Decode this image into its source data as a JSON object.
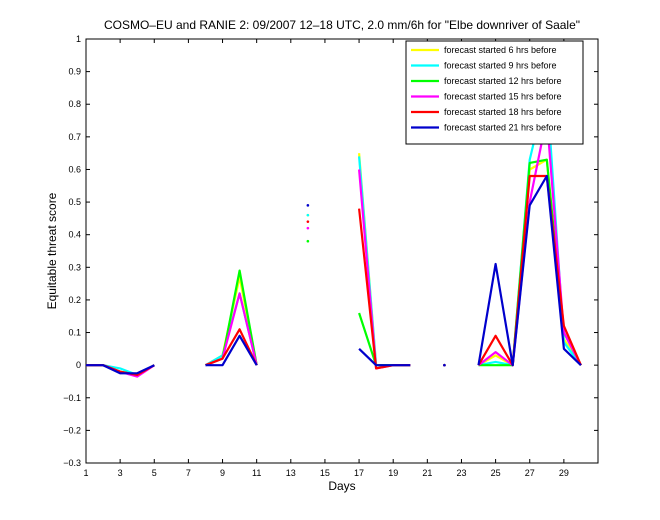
{
  "chart_data": {
    "type": "line",
    "title": "COSMO–EU and RANIE 2: 09/2007 12–18 UTC, 2.0 mm/6h for \"Elbe downriver of Saale\"",
    "xlabel": "Days",
    "ylabel": "Equitable threat score",
    "xlim": [
      1,
      31
    ],
    "ylim": [
      -0.3,
      1
    ],
    "xticks": [
      1,
      3,
      5,
      7,
      9,
      11,
      13,
      15,
      17,
      19,
      21,
      23,
      25,
      27,
      29
    ],
    "yticks": [
      -0.3,
      -0.2,
      -0.1,
      0,
      0.1,
      0.2,
      0.3,
      0.4,
      0.5,
      0.6,
      0.7,
      0.8,
      0.9,
      1
    ],
    "ytick_labels": [
      "−0.3",
      "−0.2",
      "−0.1",
      "0",
      "0.1",
      "0.2",
      "0.3",
      "0.4",
      "0.5",
      "0.6",
      "0.7",
      "0.8",
      "0.9",
      "1"
    ],
    "grid": false,
    "legend_position": "top-right",
    "x": [
      1,
      2,
      3,
      4,
      5,
      6,
      7,
      8,
      9,
      10,
      11,
      12,
      13,
      14,
      15,
      16,
      17,
      18,
      19,
      20,
      21,
      22,
      23,
      24,
      25,
      26,
      27,
      28,
      29,
      30,
      31
    ],
    "series": [
      {
        "name": "forecast started 6 hrs before",
        "color": "#ffff00",
        "values": [
          0,
          0,
          -0.02,
          -0.03,
          0,
          null,
          null,
          0,
          0.03,
          0.27,
          0,
          null,
          null,
          0.46,
          null,
          null,
          0.65,
          0,
          0,
          0,
          null,
          0,
          null,
          0,
          0.03,
          0,
          0.6,
          0.63,
          0.08,
          0,
          null
        ]
      },
      {
        "name": "forecast started 9 hrs before",
        "color": "#00ffff",
        "values": [
          0,
          0,
          -0.01,
          -0.03,
          0,
          null,
          null,
          0,
          0.03,
          0.22,
          0,
          null,
          null,
          0.46,
          null,
          null,
          0.64,
          0,
          0,
          0,
          null,
          0,
          null,
          0,
          0.01,
          0,
          0.63,
          0.85,
          0.07,
          0,
          null
        ]
      },
      {
        "name": "forecast started 12 hrs before",
        "color": "#00ff00",
        "values": [
          0,
          0,
          -0.02,
          -0.03,
          0,
          null,
          null,
          0,
          0.02,
          0.29,
          0,
          null,
          null,
          0.38,
          null,
          null,
          0.16,
          0,
          0,
          0,
          null,
          0,
          null,
          0,
          0,
          0,
          0.62,
          0.63,
          0.1,
          0,
          null
        ]
      },
      {
        "name": "forecast started 15 hrs before",
        "color": "#ff00ff",
        "values": [
          0,
          0,
          -0.02,
          -0.035,
          0,
          null,
          null,
          0,
          0.02,
          0.22,
          0,
          null,
          null,
          0.42,
          null,
          null,
          0.6,
          -0.01,
          0,
          0,
          null,
          0,
          null,
          0,
          0.04,
          0,
          0.5,
          0.76,
          0.1,
          0,
          null
        ]
      },
      {
        "name": "forecast started 18 hrs before",
        "color": "#ff0000",
        "values": [
          0,
          0,
          -0.02,
          -0.03,
          0,
          null,
          null,
          0,
          0.02,
          0.11,
          0,
          null,
          null,
          0.44,
          null,
          null,
          0.48,
          -0.01,
          0,
          0,
          null,
          0,
          null,
          0,
          0.09,
          0,
          0.58,
          0.58,
          0.12,
          0,
          null
        ]
      },
      {
        "name": "forecast started 21 hrs before",
        "color": "#0000cc",
        "values": [
          0,
          0,
          -0.025,
          -0.025,
          0,
          null,
          null,
          0,
          0,
          0.09,
          0,
          null,
          null,
          0.49,
          null,
          null,
          0.05,
          0,
          0,
          0,
          null,
          0,
          null,
          0,
          0.31,
          0,
          0.49,
          0.58,
          0.05,
          0,
          null
        ]
      }
    ]
  }
}
